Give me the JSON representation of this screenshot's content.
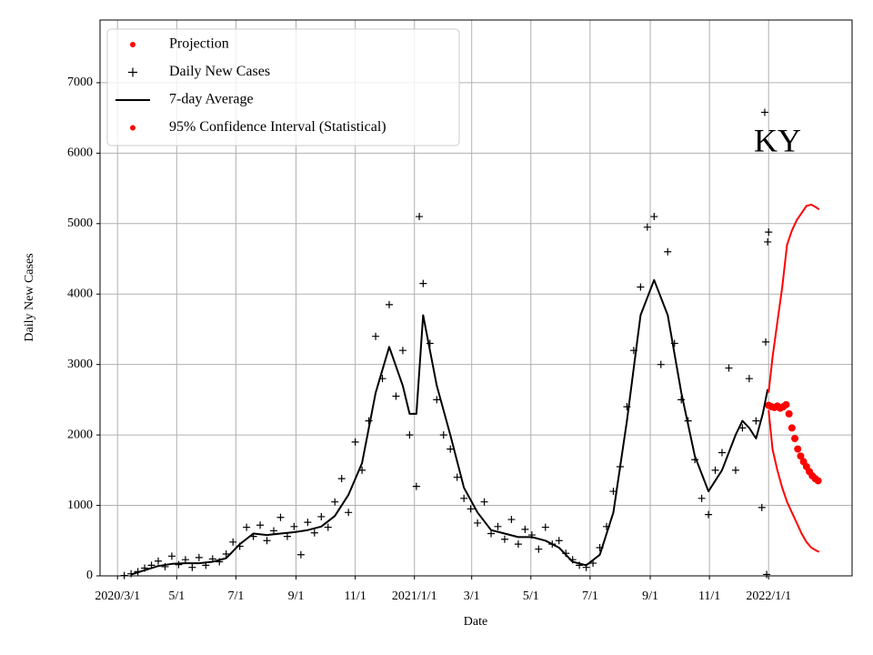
{
  "chart_data": {
    "type": "line",
    "xlabel": "Date",
    "ylabel": "Daily New Cases",
    "annotation": "KY",
    "xlim": [
      "2020-02-12",
      "2022-03-28"
    ],
    "ylim": [
      0,
      7890
    ],
    "xticks": [
      {
        "value": "2020-03-01",
        "label": "2020/3/1"
      },
      {
        "value": "2020-05-01",
        "label": "5/1"
      },
      {
        "value": "2020-07-01",
        "label": "7/1"
      },
      {
        "value": "2020-09-01",
        "label": "9/1"
      },
      {
        "value": "2020-11-01",
        "label": "11/1"
      },
      {
        "value": "2021-01-01",
        "label": "2021/1/1"
      },
      {
        "value": "2021-03-01",
        "label": "3/1"
      },
      {
        "value": "2021-05-01",
        "label": "5/1"
      },
      {
        "value": "2021-07-01",
        "label": "7/1"
      },
      {
        "value": "2021-09-01",
        "label": "9/1"
      },
      {
        "value": "2021-11-01",
        "label": "11/1"
      },
      {
        "value": "2022-01-01",
        "label": "2022/1/1"
      }
    ],
    "yticks": [
      0,
      1000,
      2000,
      3000,
      4000,
      5000,
      6000,
      7000
    ],
    "grid": true,
    "legend": "upper left",
    "series": [
      {
        "name": "Projection",
        "color": "#ff0000",
        "marker": "o",
        "x": [
          "2022-01-01",
          "2022-01-04",
          "2022-01-07",
          "2022-01-10",
          "2022-01-13",
          "2022-01-16",
          "2022-01-19",
          "2022-01-22",
          "2022-01-25",
          "2022-01-28",
          "2022-01-31",
          "2022-02-03",
          "2022-02-06",
          "2022-02-09",
          "2022-02-12",
          "2022-02-15",
          "2022-02-18",
          "2022-02-21"
        ],
        "values": [
          2420,
          2400,
          2390,
          2410,
          2380,
          2400,
          2430,
          2300,
          2100,
          1950,
          1800,
          1700,
          1620,
          1550,
          1480,
          1420,
          1380,
          1350
        ]
      },
      {
        "name": "Daily New Cases",
        "color": "#000000",
        "marker": "+",
        "x": [
          "2020-03-08",
          "2020-03-15",
          "2020-03-22",
          "2020-03-29",
          "2020-04-05",
          "2020-04-12",
          "2020-04-19",
          "2020-04-26",
          "2020-05-03",
          "2020-05-10",
          "2020-05-17",
          "2020-05-24",
          "2020-05-31",
          "2020-06-07",
          "2020-06-14",
          "2020-06-21",
          "2020-06-28",
          "2020-07-05",
          "2020-07-12",
          "2020-07-19",
          "2020-07-26",
          "2020-08-02",
          "2020-08-09",
          "2020-08-16",
          "2020-08-23",
          "2020-08-30",
          "2020-09-06",
          "2020-09-13",
          "2020-09-20",
          "2020-09-27",
          "2020-10-04",
          "2020-10-11",
          "2020-10-18",
          "2020-10-25",
          "2020-11-01",
          "2020-11-08",
          "2020-11-15",
          "2020-11-22",
          "2020-11-29",
          "2020-12-06",
          "2020-12-13",
          "2020-12-20",
          "2020-12-27",
          "2021-01-03",
          "2021-01-06",
          "2021-01-10",
          "2021-01-17",
          "2021-01-24",
          "2021-01-31",
          "2021-02-07",
          "2021-02-14",
          "2021-02-21",
          "2021-02-28",
          "2021-03-07",
          "2021-03-14",
          "2021-03-21",
          "2021-03-28",
          "2021-04-04",
          "2021-04-11",
          "2021-04-18",
          "2021-04-25",
          "2021-05-02",
          "2021-05-09",
          "2021-05-16",
          "2021-05-23",
          "2021-05-30",
          "2021-06-06",
          "2021-06-13",
          "2021-06-20",
          "2021-06-27",
          "2021-07-04",
          "2021-07-11",
          "2021-07-18",
          "2021-07-25",
          "2021-08-01",
          "2021-08-08",
          "2021-08-15",
          "2021-08-22",
          "2021-08-29",
          "2021-09-05",
          "2021-09-12",
          "2021-09-19",
          "2021-09-26",
          "2021-10-03",
          "2021-10-10",
          "2021-10-17",
          "2021-10-24",
          "2021-10-31",
          "2021-11-07",
          "2021-11-14",
          "2021-11-21",
          "2021-11-28",
          "2021-12-05",
          "2021-12-12",
          "2021-12-19",
          "2021-12-25",
          "2021-12-28",
          "2021-12-29",
          "2021-12-30",
          "2021-12-31",
          "2022-01-01"
        ],
        "values": [
          5,
          30,
          60,
          110,
          150,
          210,
          130,
          280,
          160,
          230,
          120,
          260,
          150,
          240,
          200,
          310,
          480,
          420,
          690,
          560,
          720,
          500,
          640,
          830,
          560,
          700,
          300,
          760,
          610,
          840,
          690,
          1050,
          1380,
          900,
          1900,
          1500,
          2200,
          3400,
          2800,
          3850,
          2550,
          3200,
          2000,
          1270,
          5100,
          4150,
          3300,
          2500,
          2000,
          1800,
          1400,
          1100,
          950,
          750,
          1050,
          600,
          700,
          520,
          800,
          450,
          660,
          580,
          380,
          690,
          450,
          500,
          320,
          230,
          150,
          120,
          180,
          400,
          700,
          1200,
          1550,
          2400,
          3200,
          4100,
          4950,
          5100,
          3000,
          4600,
          3300,
          2500,
          2200,
          1650,
          1100,
          870,
          1500,
          1750,
          2950,
          1500,
          2100,
          2800,
          2200,
          970,
          6580,
          3320,
          20,
          4740,
          4880
        ]
      },
      {
        "name": "7-day Average",
        "color": "#000000",
        "marker": "-",
        "x": [
          "2020-03-15",
          "2020-03-29",
          "2020-04-12",
          "2020-04-26",
          "2020-05-10",
          "2020-05-24",
          "2020-06-07",
          "2020-06-21",
          "2020-07-05",
          "2020-07-19",
          "2020-08-02",
          "2020-08-16",
          "2020-08-30",
          "2020-09-13",
          "2020-09-27",
          "2020-10-11",
          "2020-10-25",
          "2020-11-08",
          "2020-11-22",
          "2020-12-06",
          "2020-12-20",
          "2020-12-27",
          "2021-01-03",
          "2021-01-10",
          "2021-01-24",
          "2021-02-07",
          "2021-02-21",
          "2021-03-07",
          "2021-03-21",
          "2021-04-04",
          "2021-04-18",
          "2021-05-02",
          "2021-05-16",
          "2021-05-30",
          "2021-06-13",
          "2021-06-27",
          "2021-07-11",
          "2021-07-25",
          "2021-08-08",
          "2021-08-22",
          "2021-09-05",
          "2021-09-19",
          "2021-10-03",
          "2021-10-17",
          "2021-10-31",
          "2021-11-14",
          "2021-11-28",
          "2021-12-05",
          "2021-12-12",
          "2021-12-19",
          "2021-12-26",
          "2021-12-31"
        ],
        "values": [
          20,
          80,
          140,
          170,
          180,
          180,
          200,
          250,
          450,
          600,
          580,
          600,
          620,
          650,
          700,
          850,
          1150,
          1600,
          2600,
          3250,
          2700,
          2300,
          2300,
          3700,
          2700,
          2000,
          1250,
          900,
          650,
          600,
          550,
          550,
          500,
          400,
          200,
          150,
          300,
          900,
          2200,
          3700,
          4200,
          3700,
          2600,
          1700,
          1200,
          1500,
          2000,
          2200,
          2100,
          1950,
          2300,
          2650
        ]
      },
      {
        "name": "95% Confidence Interval (Statistical)",
        "color": "#ff0000",
        "marker": "o",
        "x": [
          "2022-01-01",
          "2022-01-05",
          "2022-01-10",
          "2022-01-15",
          "2022-01-20",
          "2022-01-25",
          "2022-01-30",
          "2022-02-04",
          "2022-02-09",
          "2022-02-14",
          "2022-02-19",
          "2022-02-22"
        ],
        "values": [
          2600,
          3100,
          3600,
          4100,
          4700,
          4900,
          5050,
          5150,
          5250,
          5270,
          5230,
          5200
        ],
        "lower": [
          2350,
          1800,
          1500,
          1250,
          1050,
          900,
          750,
          600,
          480,
          400,
          360,
          340
        ]
      }
    ]
  }
}
